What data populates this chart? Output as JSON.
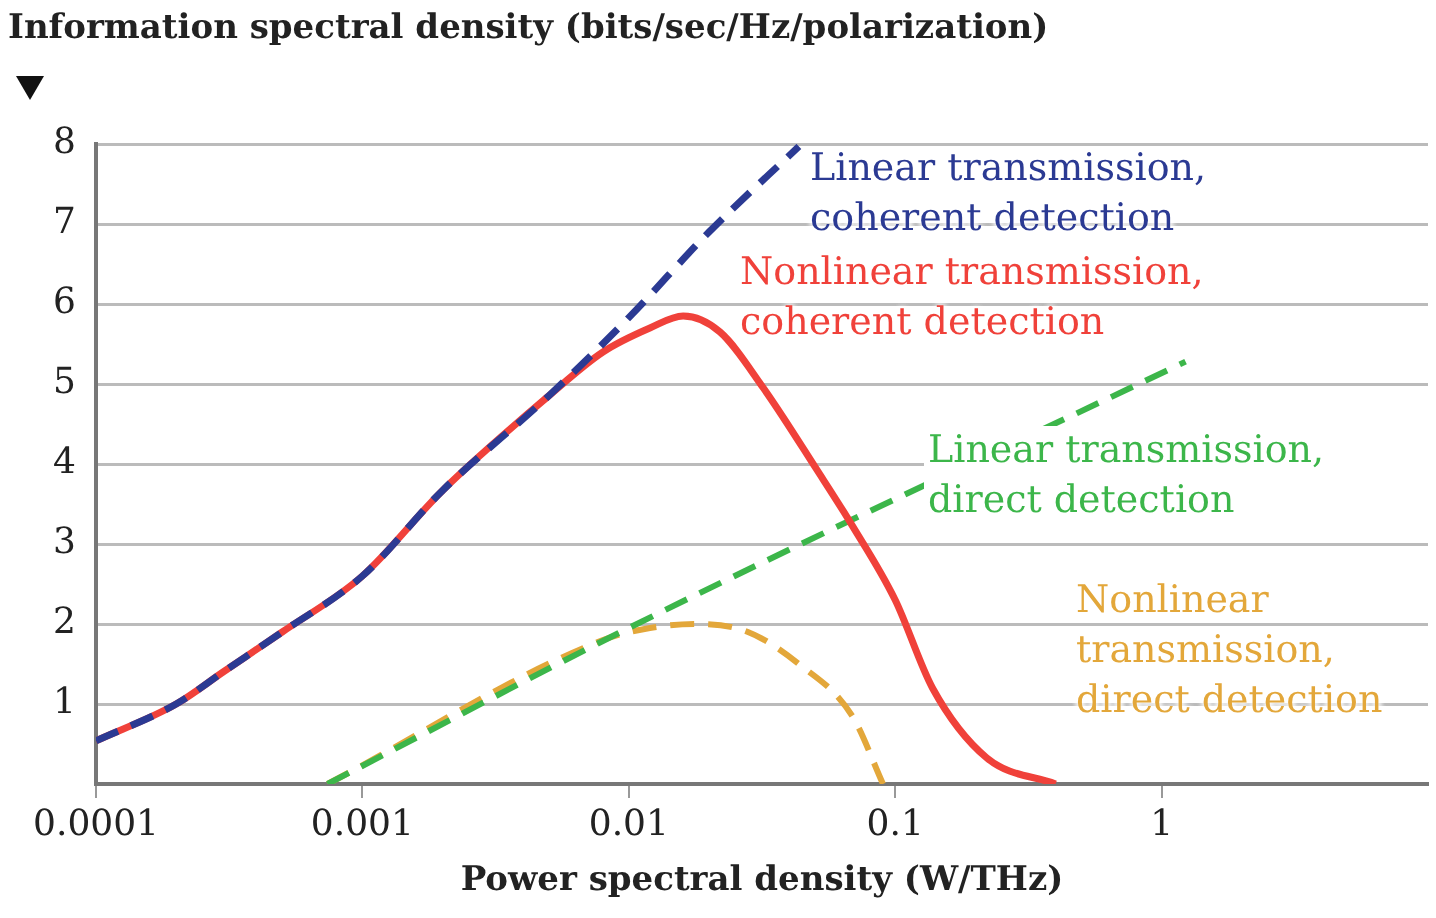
{
  "chart_data": {
    "type": "line",
    "ylabel": "Information spectral density (bits/sec/Hz/polarization)",
    "xlabel": "Power spectral density (W/THz)",
    "log": "x",
    "xlim": [
      0.0001,
      10
    ],
    "xticks": [
      0.0001,
      0.001,
      0.01,
      0.1,
      1
    ],
    "ylim": [
      0,
      8
    ],
    "yticks": [
      1,
      2,
      3,
      4,
      5,
      6,
      7,
      8
    ],
    "grid": "y",
    "legend": false,
    "marker": "none",
    "series": [
      {
        "name": "Linear transmission, coherent detection",
        "color": "#2b3a93",
        "line_style": "dashed",
        "x": [
          0.0001,
          0.0002,
          0.0003,
          0.0005,
          0.001,
          0.002,
          0.005,
          0.01,
          0.02,
          0.0435
        ],
        "values": [
          0.54,
          1.0,
          1.4,
          1.9,
          2.6,
          3.67,
          4.85,
          5.83,
          6.9,
          7.97
        ]
      },
      {
        "name": "Nonlinear transmission, coherent detection",
        "color": "#f0413a",
        "line_style": "solid",
        "x": [
          0.0001,
          0.0002,
          0.0003,
          0.0005,
          0.001,
          0.002,
          0.005,
          0.008,
          0.012,
          0.016,
          0.022,
          0.032,
          0.051,
          0.069,
          0.1,
          0.138,
          0.22,
          0.4
        ],
        "values": [
          0.54,
          1.0,
          1.4,
          1.9,
          2.6,
          3.67,
          4.85,
          5.4,
          5.7,
          5.85,
          5.65,
          4.95,
          3.92,
          3.23,
          2.3,
          1.2,
          0.33,
          0
        ]
      },
      {
        "name": "Linear transmission, direct detection",
        "color": "#3cb64a",
        "line_style": "dashed",
        "x": [
          0.00074,
          0.01,
          1.23
        ],
        "values": [
          0,
          1.95,
          5.28
        ]
      },
      {
        "name": "Nonlinear transmission, direct detection",
        "color": "#e3a73a",
        "line_style": "dashed",
        "x": [
          0.00074,
          0.008,
          0.012,
          0.018,
          0.028,
          0.0435,
          0.069,
          0.09
        ],
        "values": [
          0,
          1.8,
          1.95,
          2.0,
          1.9,
          1.5,
          0.85,
          0
        ]
      }
    ]
  }
}
